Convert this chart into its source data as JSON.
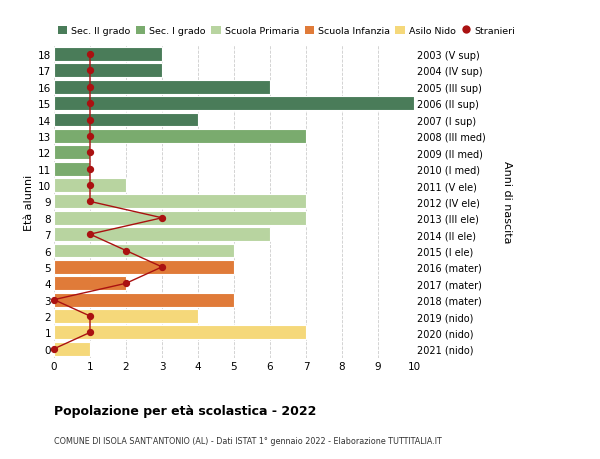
{
  "ages": [
    18,
    17,
    16,
    15,
    14,
    13,
    12,
    11,
    10,
    9,
    8,
    7,
    6,
    5,
    4,
    3,
    2,
    1,
    0
  ],
  "right_labels": [
    "2003 (V sup)",
    "2004 (IV sup)",
    "2005 (III sup)",
    "2006 (II sup)",
    "2007 (I sup)",
    "2008 (III med)",
    "2009 (II med)",
    "2010 (I med)",
    "2011 (V ele)",
    "2012 (IV ele)",
    "2013 (III ele)",
    "2014 (II ele)",
    "2015 (I ele)",
    "2016 (mater)",
    "2017 (mater)",
    "2018 (mater)",
    "2019 (nido)",
    "2020 (nido)",
    "2021 (nido)"
  ],
  "bar_values": [
    3,
    3,
    6,
    10,
    4,
    7,
    1,
    1,
    2,
    7,
    7,
    6,
    5,
    5,
    2,
    5,
    4,
    7,
    1
  ],
  "bar_colors": [
    "#4a7c59",
    "#4a7c59",
    "#4a7c59",
    "#4a7c59",
    "#4a7c59",
    "#7aab6e",
    "#7aab6e",
    "#7aab6e",
    "#b8d4a0",
    "#b8d4a0",
    "#b8d4a0",
    "#b8d4a0",
    "#b8d4a0",
    "#e07b39",
    "#e07b39",
    "#e07b39",
    "#f5d87a",
    "#f5d87a",
    "#f5d87a"
  ],
  "stranieri_x": [
    1,
    1,
    1,
    1,
    1,
    1,
    1,
    1,
    1,
    1,
    3,
    1,
    2,
    3,
    2,
    0,
    1,
    1,
    0
  ],
  "legend_labels": [
    "Sec. II grado",
    "Sec. I grado",
    "Scuola Primaria",
    "Scuola Infanzia",
    "Asilo Nido",
    "Stranieri"
  ],
  "legend_colors": [
    "#4a7c59",
    "#7aab6e",
    "#b8d4a0",
    "#e07b39",
    "#f5d87a",
    "#aa1111"
  ],
  "title": "Popolazione per età scolastica - 2022",
  "subtitle": "COMUNE DI ISOLA SANT'ANTONIO (AL) - Dati ISTAT 1° gennaio 2022 - Elaborazione TUTTITALIA.IT",
  "ylabel_left": "Età alunni",
  "ylabel_right": "Anni di nascita",
  "xlim": [
    0,
    10
  ],
  "bg_color": "#ffffff",
  "grid_color": "#cccccc",
  "bar_height": 0.85
}
